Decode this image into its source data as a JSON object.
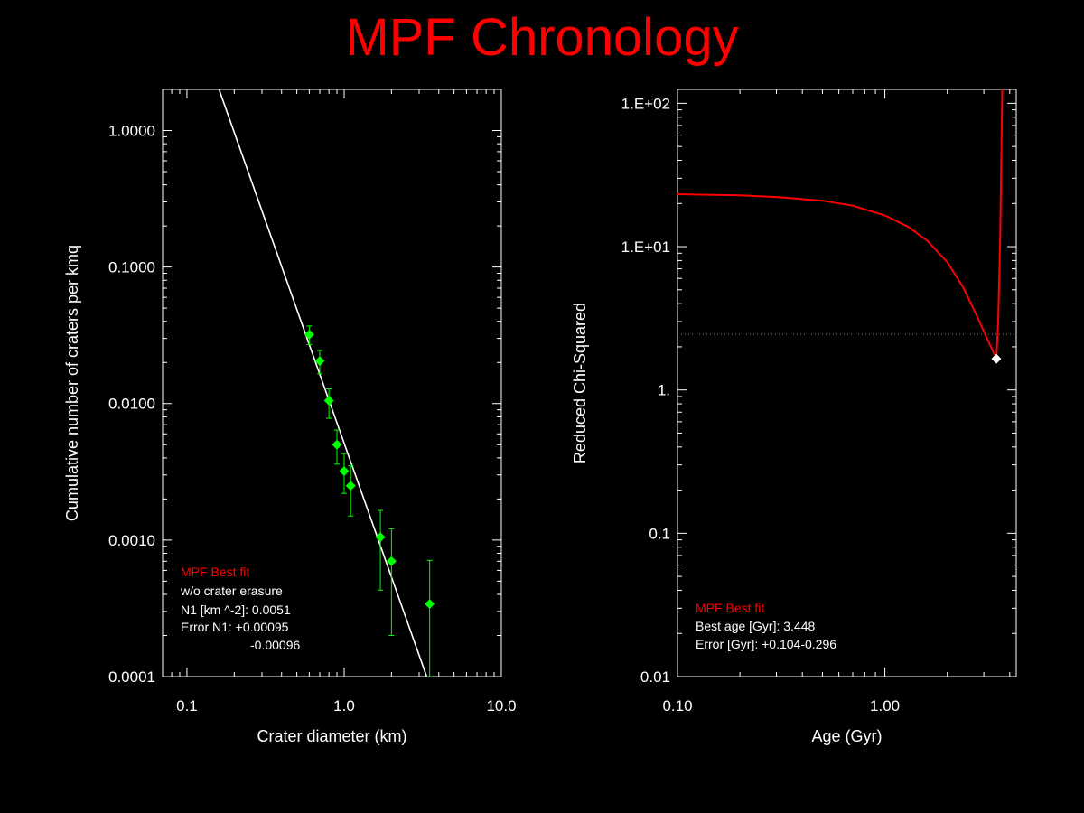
{
  "title": "MPF Chronology",
  "colors": {
    "background": "#000000",
    "title": "#ff0000",
    "axes": "#ffffff",
    "points": "#00ff00",
    "fit_left": "#ffffff",
    "fit_right": "#ff0000",
    "legend_title": "#ff0000"
  },
  "chart_data": [
    {
      "type": "scatter",
      "xlabel": "Crater diameter (km)",
      "ylabel": "Cumulative number of craters per kmq",
      "xscale": "log",
      "yscale": "log",
      "xlim": [
        0.07,
        10.0
      ],
      "ylim": [
        0.0001,
        2.0
      ],
      "xticks": [
        0.1,
        1.0,
        10.0
      ],
      "xtick_labels": [
        "0.1",
        "1.0",
        "10.0"
      ],
      "yticks": [
        0.0001,
        0.001,
        0.01,
        0.1,
        1.0
      ],
      "ytick_labels": [
        "0.0001",
        "0.0010",
        "0.0100",
        "0.1000",
        "1.0000"
      ],
      "series": [
        {
          "type": "scatter",
          "points": [
            {
              "x": 0.6,
              "y": 0.032,
              "ylow": 0.027,
              "yhigh": 0.037
            },
            {
              "x": 0.7,
              "y": 0.0205,
              "ylow": 0.0165,
              "yhigh": 0.0245
            },
            {
              "x": 0.8,
              "y": 0.0105,
              "ylow": 0.0078,
              "yhigh": 0.0128
            },
            {
              "x": 0.9,
              "y": 0.005,
              "ylow": 0.0036,
              "yhigh": 0.0064
            },
            {
              "x": 1.0,
              "y": 0.0032,
              "ylow": 0.0022,
              "yhigh": 0.0043
            },
            {
              "x": 1.1,
              "y": 0.0025,
              "ylow": 0.0015,
              "yhigh": 0.0035
            },
            {
              "x": 1.7,
              "y": 0.00105,
              "ylow": 0.00043,
              "yhigh": 0.00165
            },
            {
              "x": 2.0,
              "y": 0.0007,
              "ylow": 0.0002,
              "yhigh": 0.00121
            },
            {
              "x": 3.5,
              "y": 0.00034,
              "ylow": 0.0001,
              "yhigh": 0.00071
            }
          ]
        },
        {
          "type": "line",
          "points": [
            {
              "x": 0.16,
              "y": 2.0
            },
            {
              "x": 3.35,
              "y": 0.0001
            }
          ]
        }
      ],
      "legend": {
        "title": "MPF Best fit",
        "lines": [
          "w/o crater erasure",
          "N1 [km ^-2]: 0.0051",
          "Error N1: +0.00095",
          "-0.00096"
        ]
      }
    },
    {
      "type": "line",
      "xlabel": "Age (Gyr)",
      "ylabel": "Reduced Chi-Squared",
      "xscale": "log",
      "yscale": "log",
      "xlim": [
        0.1,
        4.3
      ],
      "ylim": [
        0.01,
        125
      ],
      "xticks": [
        0.1,
        1.0
      ],
      "xtick_labels": [
        "0.10",
        "1.00"
      ],
      "yticks": [
        0.01,
        0.1,
        1,
        10,
        100
      ],
      "ytick_labels": [
        "0.01",
        "0.1",
        "1.",
        "1.E+01",
        "1.E+02"
      ],
      "series": [
        {
          "type": "line",
          "points": [
            {
              "x": 0.1,
              "y": 23.2
            },
            {
              "x": 0.2,
              "y": 22.8
            },
            {
              "x": 0.3,
              "y": 22.2
            },
            {
              "x": 0.5,
              "y": 20.9
            },
            {
              "x": 0.7,
              "y": 19.3
            },
            {
              "x": 1.0,
              "y": 16.5
            },
            {
              "x": 1.3,
              "y": 13.7
            },
            {
              "x": 1.6,
              "y": 11.0
            },
            {
              "x": 2.0,
              "y": 7.8
            },
            {
              "x": 2.4,
              "y": 5.1
            },
            {
              "x": 2.8,
              "y": 3.2
            },
            {
              "x": 3.1,
              "y": 2.3
            },
            {
              "x": 3.3,
              "y": 1.9
            },
            {
              "x": 3.448,
              "y": 1.65
            },
            {
              "x": 3.52,
              "y": 3.0
            },
            {
              "x": 3.6,
              "y": 12.0
            },
            {
              "x": 3.68,
              "y": 125
            }
          ]
        },
        {
          "type": "scatter",
          "points": [
            {
              "x": 3.448,
              "y": 1.65
            }
          ]
        },
        {
          "type": "reference_line",
          "y": 2.45
        }
      ],
      "legend": {
        "title": "MPF Best fit",
        "lines": [
          "Best age [Gyr]: 3.448",
          "Error [Gyr]: +0.104-0.296"
        ]
      }
    }
  ]
}
